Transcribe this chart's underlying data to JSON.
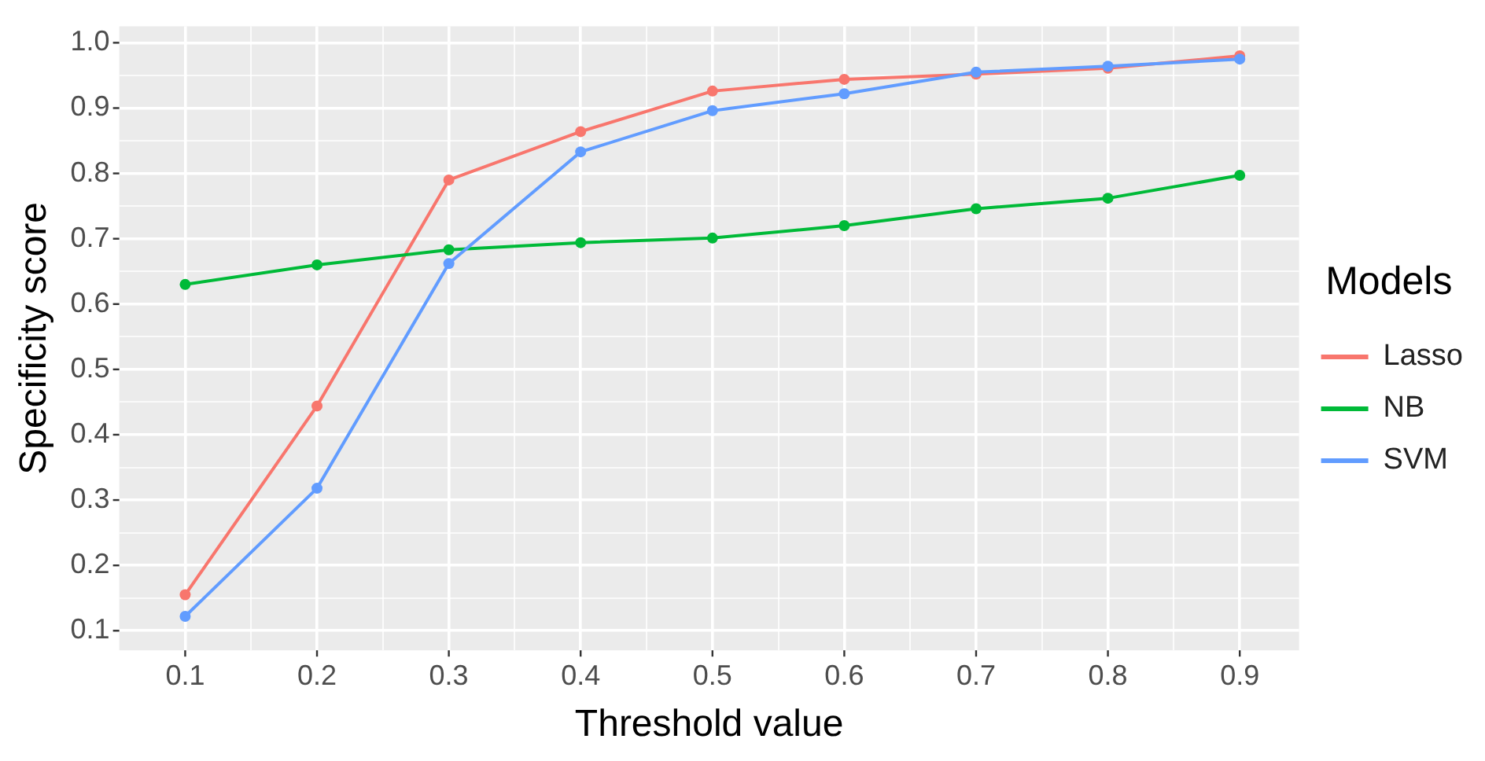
{
  "chart_data": {
    "type": "line",
    "xlabel": "Threshold value",
    "ylabel": "Specificity score",
    "legend_title": "Models",
    "legend": "right",
    "grid": true,
    "marker": "circle",
    "line_style": "solid",
    "x": [
      0.1,
      0.2,
      0.3,
      0.4,
      0.5,
      0.6,
      0.7,
      0.8,
      0.9
    ],
    "xlim": [
      0.05,
      0.945
    ],
    "ylim": [
      0.07,
      1.025
    ],
    "xticks": [
      0.1,
      {
        "value": 0.15,
        "label": null
      },
      0.2,
      {
        "value": 0.25,
        "label": null
      },
      0.3,
      {
        "value": 0.35,
        "label": null
      },
      0.4,
      {
        "value": 0.45,
        "label": null
      },
      0.5,
      {
        "value": 0.55,
        "label": null
      },
      0.6,
      {
        "value": 0.65,
        "label": null
      },
      0.7,
      {
        "value": 0.75,
        "label": null
      },
      0.8,
      {
        "value": 0.85,
        "label": null
      },
      0.9
    ],
    "yticks": [
      0.1,
      {
        "value": 0.15,
        "label": null
      },
      0.2,
      {
        "value": 0.25,
        "label": null
      },
      0.3,
      {
        "value": 0.35,
        "label": null
      },
      0.4,
      {
        "value": 0.45,
        "label": null
      },
      0.5,
      {
        "value": 0.55,
        "label": null
      },
      0.6,
      {
        "value": 0.65,
        "label": null
      },
      0.7,
      {
        "value": 0.75,
        "label": null
      },
      0.8,
      {
        "value": 0.85,
        "label": null
      },
      0.9,
      {
        "value": 0.95,
        "label": null
      },
      {
        "value": 1.0,
        "label": "1.0"
      }
    ],
    "series": [
      {
        "name": "Lasso",
        "color": "#f8766d",
        "values": [
          0.155,
          0.444,
          0.79,
          0.864,
          0.926,
          0.944,
          0.952,
          0.961,
          0.98
        ]
      },
      {
        "name": "NB",
        "color": "#00ba38",
        "values": [
          0.63,
          0.66,
          0.683,
          0.694,
          0.701,
          0.72,
          0.746,
          0.762,
          0.797
        ]
      },
      {
        "name": "SVM",
        "color": "#619cff",
        "values": [
          0.122,
          0.318,
          0.662,
          0.833,
          0.896,
          0.922,
          0.955,
          0.964,
          0.975
        ]
      }
    ]
  }
}
